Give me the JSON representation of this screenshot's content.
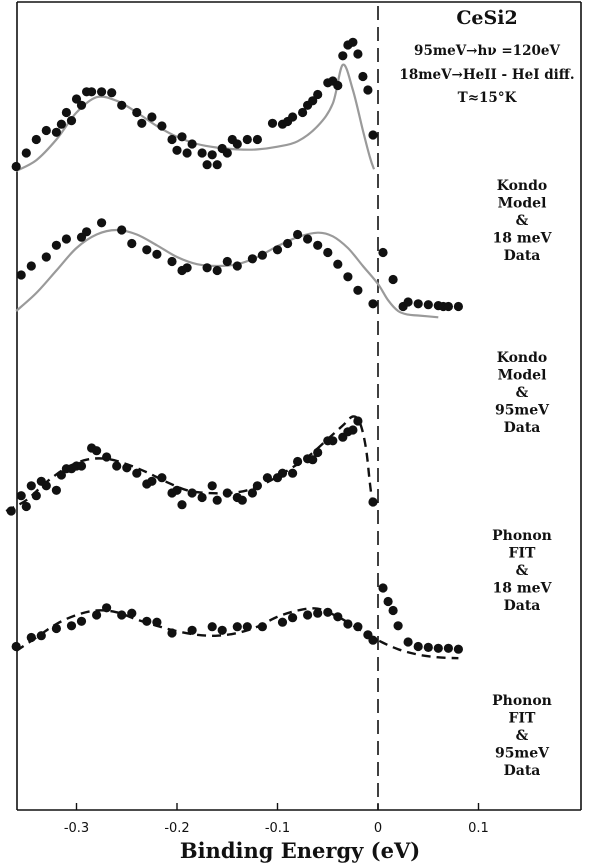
{
  "chart_data": {
    "type": "scatter",
    "title": "CeSi2",
    "annotation_lines": [
      "95meV→hν =120eV",
      "18meV→HeII - HeI diff.",
      "T≈15°K"
    ],
    "xlabel": "Binding Energy (eV)",
    "ylabel": "",
    "xlim": [
      -0.37,
      0.12
    ],
    "xticks": [
      -0.3,
      -0.2,
      -0.1,
      0,
      0.1
    ],
    "xtick_labels": [
      "-0.3",
      "-0.2",
      "-0.1",
      "0",
      "0.1"
    ],
    "fermi_level_line": 0,
    "grid": false,
    "panels": [
      {
        "label_lines": [
          "Kondo",
          "Model",
          "&",
          "18 meV",
          "Data"
        ],
        "fit_style": "solid-grey",
        "fit": [
          [
            -0.36,
            10
          ],
          [
            -0.34,
            22
          ],
          [
            -0.32,
            45
          ],
          [
            -0.3,
            75
          ],
          [
            -0.28,
            92
          ],
          [
            -0.26,
            88
          ],
          [
            -0.24,
            75
          ],
          [
            -0.22,
            60
          ],
          [
            -0.2,
            48
          ],
          [
            -0.18,
            40
          ],
          [
            -0.16,
            36
          ],
          [
            -0.14,
            34
          ],
          [
            -0.12,
            34
          ],
          [
            -0.1,
            37
          ],
          [
            -0.08,
            43
          ],
          [
            -0.06,
            60
          ],
          [
            -0.045,
            85
          ],
          [
            -0.035,
            128
          ],
          [
            -0.025,
            100
          ],
          [
            -0.015,
            55
          ],
          [
            -0.008,
            25
          ],
          [
            -0.004,
            12
          ]
        ],
        "points": [
          [
            -0.36,
            15
          ],
          [
            -0.35,
            30
          ],
          [
            -0.34,
            45
          ],
          [
            -0.33,
            55
          ],
          [
            -0.32,
            53
          ],
          [
            -0.315,
            62
          ],
          [
            -0.31,
            75
          ],
          [
            -0.305,
            66
          ],
          [
            -0.3,
            90
          ],
          [
            -0.295,
            83
          ],
          [
            -0.29,
            98
          ],
          [
            -0.285,
            98
          ],
          [
            -0.275,
            98
          ],
          [
            -0.265,
            97
          ],
          [
            -0.255,
            83
          ],
          [
            -0.24,
            75
          ],
          [
            -0.235,
            63
          ],
          [
            -0.225,
            70
          ],
          [
            -0.215,
            60
          ],
          [
            -0.205,
            45
          ],
          [
            -0.2,
            33
          ],
          [
            -0.195,
            48
          ],
          [
            -0.19,
            30
          ],
          [
            -0.185,
            40
          ],
          [
            -0.175,
            30
          ],
          [
            -0.17,
            17
          ],
          [
            -0.165,
            28
          ],
          [
            -0.16,
            17
          ],
          [
            -0.155,
            35
          ],
          [
            -0.15,
            30
          ],
          [
            -0.145,
            45
          ],
          [
            -0.14,
            40
          ],
          [
            -0.13,
            45
          ],
          [
            -0.12,
            45
          ],
          [
            -0.105,
            63
          ],
          [
            -0.095,
            62
          ],
          [
            -0.09,
            65
          ],
          [
            -0.085,
            70
          ],
          [
            -0.075,
            75
          ],
          [
            -0.07,
            83
          ],
          [
            -0.065,
            88
          ],
          [
            -0.06,
            95
          ],
          [
            -0.05,
            108
          ],
          [
            -0.045,
            110
          ],
          [
            -0.04,
            105
          ],
          [
            -0.035,
            138
          ],
          [
            -0.03,
            150
          ],
          [
            -0.025,
            153
          ],
          [
            -0.02,
            140
          ],
          [
            -0.015,
            115
          ],
          [
            -0.01,
            100
          ],
          [
            -0.005,
            50
          ]
        ]
      },
      {
        "label_lines": [
          "Kondo",
          "Model",
          "&",
          "95meV",
          "Data"
        ],
        "fit_style": "solid-grey",
        "fit": [
          [
            -0.36,
            10
          ],
          [
            -0.34,
            30
          ],
          [
            -0.32,
            55
          ],
          [
            -0.3,
            80
          ],
          [
            -0.28,
            95
          ],
          [
            -0.26,
            100
          ],
          [
            -0.24,
            95
          ],
          [
            -0.22,
            83
          ],
          [
            -0.2,
            70
          ],
          [
            -0.18,
            62
          ],
          [
            -0.16,
            60
          ],
          [
            -0.14,
            62
          ],
          [
            -0.12,
            70
          ],
          [
            -0.1,
            82
          ],
          [
            -0.08,
            92
          ],
          [
            -0.06,
            97
          ],
          [
            -0.045,
            93
          ],
          [
            -0.03,
            80
          ],
          [
            -0.015,
            60
          ],
          [
            0.0,
            40
          ],
          [
            0.01,
            22
          ],
          [
            0.02,
            10
          ],
          [
            0.03,
            6
          ],
          [
            0.04,
            5
          ],
          [
            0.06,
            3
          ]
        ],
        "points": [
          [
            -0.355,
            50
          ],
          [
            -0.345,
            60
          ],
          [
            -0.33,
            70
          ],
          [
            -0.32,
            83
          ],
          [
            -0.31,
            90
          ],
          [
            -0.295,
            92
          ],
          [
            -0.29,
            98
          ],
          [
            -0.275,
            108
          ],
          [
            -0.255,
            100
          ],
          [
            -0.245,
            85
          ],
          [
            -0.23,
            78
          ],
          [
            -0.22,
            73
          ],
          [
            -0.205,
            65
          ],
          [
            -0.195,
            55
          ],
          [
            -0.19,
            58
          ],
          [
            -0.17,
            58
          ],
          [
            -0.16,
            55
          ],
          [
            -0.15,
            65
          ],
          [
            -0.14,
            60
          ],
          [
            -0.125,
            68
          ],
          [
            -0.115,
            72
          ],
          [
            -0.1,
            78
          ],
          [
            -0.09,
            85
          ],
          [
            -0.08,
            95
          ],
          [
            -0.07,
            90
          ],
          [
            -0.06,
            83
          ],
          [
            -0.05,
            75
          ],
          [
            -0.04,
            62
          ],
          [
            -0.03,
            48
          ],
          [
            -0.02,
            33
          ],
          [
            -0.005,
            18
          ],
          [
            0.005,
            75
          ],
          [
            0.015,
            45
          ],
          [
            0.025,
            15
          ],
          [
            0.03,
            20
          ],
          [
            0.04,
            18
          ],
          [
            0.05,
            17
          ],
          [
            0.06,
            16
          ],
          [
            0.065,
            15
          ],
          [
            0.07,
            15
          ],
          [
            0.08,
            15
          ]
        ]
      },
      {
        "label_lines": [
          "Phonon",
          "FIT",
          "&",
          "18 meV",
          "Data"
        ],
        "fit_style": "dashed-black",
        "fit": [
          [
            -0.37,
            10
          ],
          [
            -0.35,
            22
          ],
          [
            -0.33,
            42
          ],
          [
            -0.31,
            58
          ],
          [
            -0.29,
            67
          ],
          [
            -0.27,
            68
          ],
          [
            -0.25,
            62
          ],
          [
            -0.23,
            53
          ],
          [
            -0.21,
            42
          ],
          [
            -0.19,
            33
          ],
          [
            -0.17,
            30
          ],
          [
            -0.15,
            30
          ],
          [
            -0.13,
            33
          ],
          [
            -0.11,
            42
          ],
          [
            -0.09,
            55
          ],
          [
            -0.07,
            70
          ],
          [
            -0.05,
            90
          ],
          [
            -0.035,
            105
          ],
          [
            -0.025,
            115
          ],
          [
            -0.018,
            108
          ],
          [
            -0.012,
            80
          ],
          [
            -0.008,
            40
          ],
          [
            -0.005,
            15
          ]
        ],
        "points": [
          [
            -0.365,
            10
          ],
          [
            -0.355,
            27
          ],
          [
            -0.35,
            15
          ],
          [
            -0.345,
            38
          ],
          [
            -0.34,
            27
          ],
          [
            -0.335,
            43
          ],
          [
            -0.33,
            38
          ],
          [
            -0.32,
            33
          ],
          [
            -0.315,
            50
          ],
          [
            -0.31,
            57
          ],
          [
            -0.305,
            57
          ],
          [
            -0.3,
            60
          ],
          [
            -0.295,
            60
          ],
          [
            -0.285,
            80
          ],
          [
            -0.28,
            77
          ],
          [
            -0.27,
            70
          ],
          [
            -0.26,
            60
          ],
          [
            -0.25,
            58
          ],
          [
            -0.24,
            52
          ],
          [
            -0.23,
            40
          ],
          [
            -0.225,
            43
          ],
          [
            -0.215,
            47
          ],
          [
            -0.205,
            30
          ],
          [
            -0.2,
            33
          ],
          [
            -0.195,
            17
          ],
          [
            -0.185,
            30
          ],
          [
            -0.175,
            25
          ],
          [
            -0.165,
            38
          ],
          [
            -0.16,
            22
          ],
          [
            -0.15,
            30
          ],
          [
            -0.14,
            25
          ],
          [
            -0.135,
            22
          ],
          [
            -0.125,
            30
          ],
          [
            -0.12,
            38
          ],
          [
            -0.11,
            47
          ],
          [
            -0.1,
            47
          ],
          [
            -0.095,
            52
          ],
          [
            -0.085,
            52
          ],
          [
            -0.08,
            65
          ],
          [
            -0.07,
            68
          ],
          [
            -0.065,
            67
          ],
          [
            -0.06,
            75
          ],
          [
            -0.05,
            88
          ],
          [
            -0.045,
            88
          ],
          [
            -0.035,
            92
          ],
          [
            -0.03,
            98
          ],
          [
            -0.025,
            100
          ],
          [
            -0.02,
            110
          ],
          [
            -0.005,
            20
          ]
        ]
      },
      {
        "label_lines": [
          "Phonon",
          "FIT",
          "&",
          "95meV",
          "Data"
        ],
        "fit_style": "dashed-black",
        "fit": [
          [
            -0.36,
            10
          ],
          [
            -0.34,
            25
          ],
          [
            -0.32,
            40
          ],
          [
            -0.3,
            50
          ],
          [
            -0.28,
            55
          ],
          [
            -0.26,
            53
          ],
          [
            -0.24,
            45
          ],
          [
            -0.22,
            38
          ],
          [
            -0.2,
            32
          ],
          [
            -0.18,
            28
          ],
          [
            -0.16,
            27
          ],
          [
            -0.14,
            30
          ],
          [
            -0.12,
            37
          ],
          [
            -0.1,
            48
          ],
          [
            -0.08,
            55
          ],
          [
            -0.06,
            57
          ],
          [
            -0.04,
            48
          ],
          [
            -0.02,
            35
          ],
          [
            0.0,
            22
          ],
          [
            0.02,
            12
          ],
          [
            0.04,
            6
          ],
          [
            0.06,
            3
          ],
          [
            0.08,
            2
          ]
        ],
        "points": [
          [
            -0.36,
            15
          ],
          [
            -0.345,
            25
          ],
          [
            -0.335,
            27
          ],
          [
            -0.32,
            35
          ],
          [
            -0.305,
            38
          ],
          [
            -0.295,
            43
          ],
          [
            -0.28,
            50
          ],
          [
            -0.27,
            58
          ],
          [
            -0.255,
            50
          ],
          [
            -0.245,
            52
          ],
          [
            -0.23,
            43
          ],
          [
            -0.22,
            42
          ],
          [
            -0.205,
            30
          ],
          [
            -0.185,
            33
          ],
          [
            -0.165,
            37
          ],
          [
            -0.155,
            33
          ],
          [
            -0.14,
            37
          ],
          [
            -0.13,
            37
          ],
          [
            -0.115,
            37
          ],
          [
            -0.095,
            42
          ],
          [
            -0.085,
            47
          ],
          [
            -0.07,
            50
          ],
          [
            -0.06,
            52
          ],
          [
            -0.05,
            53
          ],
          [
            -0.04,
            48
          ],
          [
            -0.03,
            40
          ],
          [
            -0.02,
            37
          ],
          [
            -0.01,
            28
          ],
          [
            -0.005,
            22
          ],
          [
            0.005,
            80
          ],
          [
            0.01,
            65
          ],
          [
            0.015,
            55
          ],
          [
            0.02,
            38
          ],
          [
            0.03,
            20
          ],
          [
            0.04,
            15
          ],
          [
            0.05,
            14
          ],
          [
            0.06,
            13
          ],
          [
            0.07,
            13
          ],
          [
            0.08,
            12
          ]
        ]
      }
    ]
  }
}
